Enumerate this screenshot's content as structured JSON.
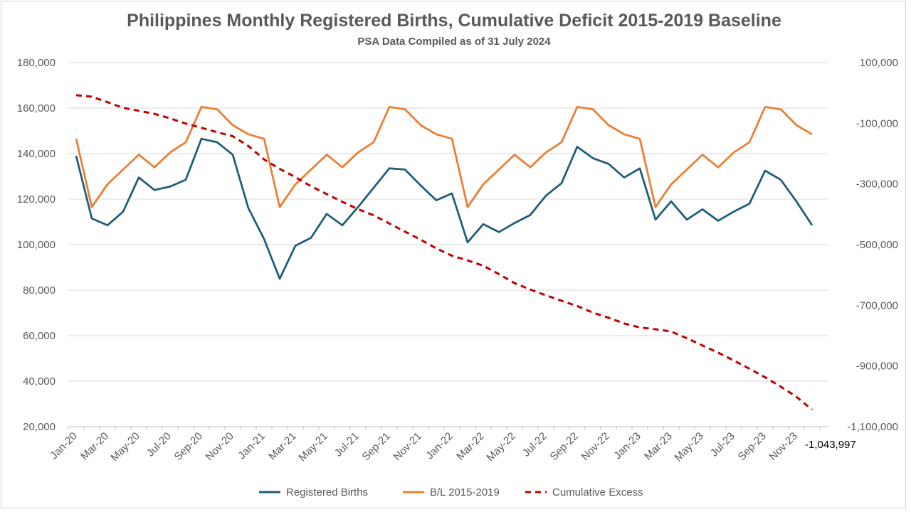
{
  "chart_data": {
    "type": "line",
    "title": "Philippines Monthly Registered Births, Cumulative Deficit 2015-2019 Baseline",
    "subtitle": "PSA Data Compiled as of 31 July 2024",
    "x": [
      "Jan-20",
      "Feb-20",
      "Mar-20",
      "Apr-20",
      "May-20",
      "Jun-20",
      "Jul-20",
      "Aug-20",
      "Sep-20",
      "Oct-20",
      "Nov-20",
      "Dec-20",
      "Jan-21",
      "Feb-21",
      "Mar-21",
      "Apr-21",
      "May-21",
      "Jun-21",
      "Jul-21",
      "Aug-21",
      "Sep-21",
      "Oct-21",
      "Nov-21",
      "Dec-21",
      "Jan-22",
      "Feb-22",
      "Mar-22",
      "Apr-22",
      "May-22",
      "Jun-22",
      "Jul-22",
      "Aug-22",
      "Sep-22",
      "Oct-22",
      "Nov-22",
      "Dec-22",
      "Jan-23",
      "Feb-23",
      "Mar-23",
      "Apr-23",
      "May-23",
      "Jun-23",
      "Jul-23",
      "Aug-23",
      "Sep-23",
      "Oct-23",
      "Nov-23",
      "Dec-23"
    ],
    "x_tick_labels": [
      "Jan-20",
      "Mar-20",
      "May-20",
      "Jul-20",
      "Sep-20",
      "Nov-20",
      "Jan-21",
      "Mar-21",
      "May-21",
      "Jul-21",
      "Sep-21",
      "Nov-21",
      "Jan-22",
      "Mar-22",
      "May-22",
      "Jul-22",
      "Sep-22",
      "Nov-22",
      "Jan-23",
      "Mar-23",
      "May-23",
      "Jul-23",
      "Sep-23",
      "Nov-23"
    ],
    "y_left": {
      "min": 20000,
      "max": 180000,
      "step": 20000,
      "tick_labels": [
        "180,000",
        "160,000",
        "140,000",
        "120,000",
        "100,000",
        "80,000",
        "60,000",
        "40,000",
        "20,000"
      ]
    },
    "y_right": {
      "min": -1100000,
      "max": 100000,
      "step": 200000,
      "tick_labels": [
        "100,000",
        "-100,000",
        "-300,000",
        "-500,000",
        "-700,000",
        "-900,000",
        "-1,100,000"
      ]
    },
    "series": [
      {
        "name": "Registered Births",
        "axis": "left",
        "color": "#1f5c7a",
        "style": "solid",
        "values": [
          139000,
          111500,
          108500,
          114500,
          129500,
          124000,
          125500,
          128500,
          146500,
          145000,
          139500,
          116000,
          102500,
          85000,
          99500,
          103000,
          113500,
          108500,
          116500,
          125000,
          133500,
          133000,
          126000,
          119500,
          122500,
          101000,
          109000,
          105500,
          109500,
          113000,
          121500,
          127000,
          143000,
          138000,
          135500,
          129500,
          133500,
          111000,
          119000,
          111000,
          115500,
          110500,
          114500,
          118000,
          132500,
          128500,
          119000,
          108500
        ]
      },
      {
        "name": "B/L 2015-2019",
        "axis": "left",
        "color": "#ed7d31",
        "style": "solid",
        "values": [
          146500,
          116500,
          126500,
          133000,
          139500,
          134000,
          140500,
          145000,
          160500,
          159500,
          152500,
          148500,
          146500,
          116500,
          126500,
          133000,
          139500,
          134000,
          140500,
          145000,
          160500,
          159500,
          152500,
          148500,
          146500,
          116500,
          126500,
          133000,
          139500,
          134000,
          140500,
          145000,
          160500,
          159500,
          152500,
          148500,
          146500,
          116500,
          126500,
          133000,
          139500,
          134000,
          140500,
          145000,
          160500,
          159500,
          152500,
          148500
        ]
      },
      {
        "name": "Cumulative Excess",
        "axis": "right",
        "color": "#c00000",
        "style": "dashed",
        "values": [
          -7500,
          -12500,
          -30500,
          -49000,
          -59000,
          -69000,
          -84000,
          -101000,
          -115000,
          -129500,
          -142500,
          -175000,
          -219000,
          -250500,
          -277500,
          -307500,
          -333500,
          -359000,
          -383000,
          -403500,
          -430500,
          -457000,
          -483500,
          -512500,
          -536500,
          -552000,
          -569500,
          -597000,
          -627000,
          -648000,
          -667000,
          -685000,
          -702500,
          -724000,
          -741000,
          -760000,
          -773000,
          -779000,
          -786500,
          -808500,
          -832500,
          -856000,
          -882000,
          -909000,
          -937000,
          -968000,
          -1001500,
          -1043997
        ]
      }
    ],
    "annotations": [
      {
        "text": "-1,043,997",
        "series": "Cumulative Excess",
        "point": "Dec-23"
      }
    ],
    "legend": "bottom",
    "grid": "horizontal"
  }
}
